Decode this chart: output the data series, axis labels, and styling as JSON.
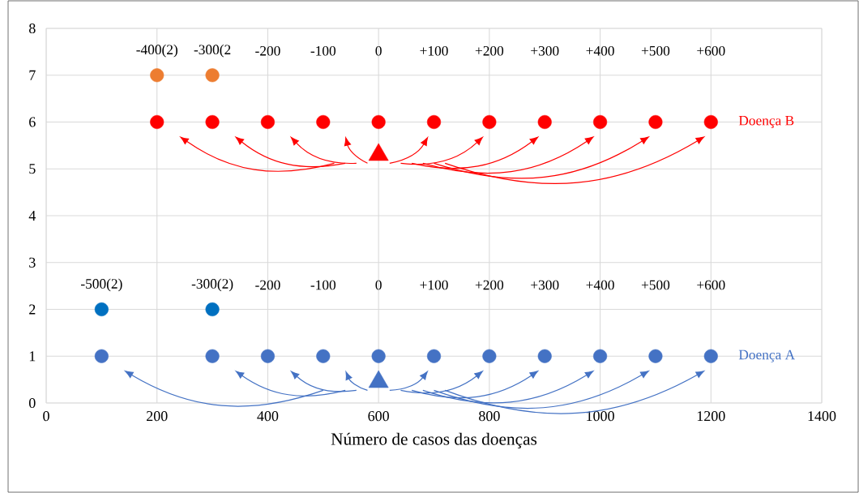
{
  "chart_data": {
    "type": "scatter",
    "xlabel": "Número de casos das doenças",
    "xlim": [
      0,
      1400
    ],
    "xticks": [
      0,
      200,
      400,
      600,
      800,
      1000,
      1200,
      1400
    ],
    "ylim": [
      0,
      8
    ],
    "yticks": [
      0,
      1,
      2,
      3,
      4,
      5,
      6,
      7,
      8
    ],
    "grid": true,
    "marker": "circle",
    "series": [
      {
        "name": "Doença A",
        "color": "#4472c4",
        "x": [
          100,
          300,
          400,
          500,
          600,
          700,
          800,
          900,
          1000,
          1100,
          1200
        ],
        "values": [
          1,
          1,
          1,
          1,
          1,
          1,
          1,
          1,
          1,
          1,
          1
        ]
      },
      {
        "color": "#0070c0",
        "x": [
          100,
          300
        ],
        "values": [
          2,
          2
        ]
      },
      {
        "color": "#4472c4",
        "marker": "triangle",
        "x": [
          600
        ],
        "values": [
          0.45
        ]
      },
      {
        "name": "Doença B",
        "color": "#ff0000",
        "x": [
          200,
          300,
          400,
          500,
          600,
          700,
          800,
          900,
          1000,
          1100,
          1200
        ],
        "values": [
          6,
          6,
          6,
          6,
          6,
          6,
          6,
          6,
          6,
          6,
          6
        ]
      },
      {
        "color": "#ed7d31",
        "x": [
          200,
          300
        ],
        "values": [
          7,
          7
        ]
      },
      {
        "color": "#ff0000",
        "marker": "triangle",
        "x": [
          600
        ],
        "values": [
          5.3
        ]
      }
    ],
    "annotations": [
      "-400(2)",
      "-300(2",
      "-200",
      "-100",
      "0",
      "+100",
      "+200",
      "+300",
      "+400",
      "+500",
      "+600",
      "-500(2)",
      "-300(2)",
      "-200",
      "-100",
      "0",
      "+100",
      "+200",
      "+300",
      "+400",
      "+500",
      "+600"
    ]
  }
}
